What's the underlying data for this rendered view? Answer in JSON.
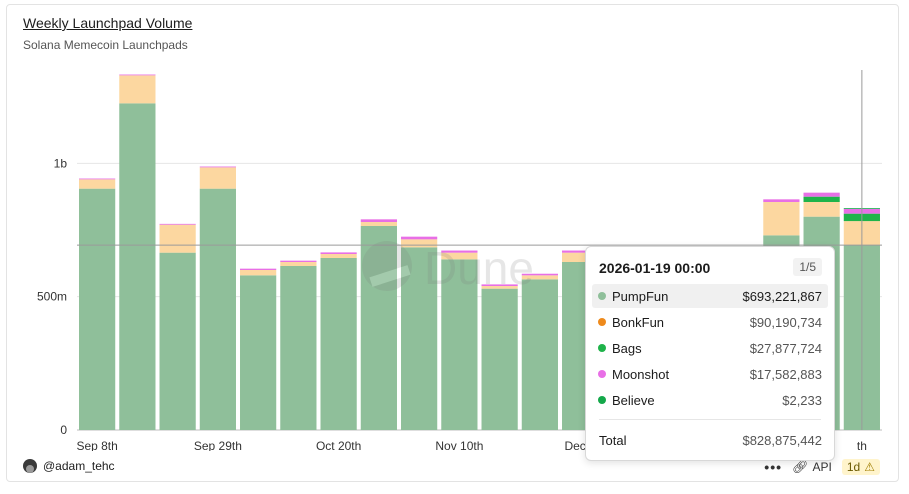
{
  "header": {
    "title": "Weekly Launchpad Volume",
    "subtitle": "Solana Memecoin Launchpads"
  },
  "watermark": "Dune",
  "footer": {
    "author": "@adam_tehc",
    "api_label": "API",
    "refresh_badge": "1d",
    "icons": [
      "avatar-icon",
      "more-icon",
      "link-icon",
      "warning-icon"
    ]
  },
  "tooltip": {
    "date": "2026-01-19 00:00",
    "page": "1/5",
    "rows": [
      {
        "name": "PumpFun",
        "value": "$693,221,867",
        "color": "#8fbf9a"
      },
      {
        "name": "BonkFun",
        "value": "$90,190,734",
        "color": "#ee8a1c"
      },
      {
        "name": "Bags",
        "value": "$27,877,724",
        "color": "#1fb34a"
      },
      {
        "name": "Moonshot",
        "value": "$17,582,883",
        "color": "#e86fe6"
      },
      {
        "name": "Believe",
        "value": "$2,233",
        "color": "#14a84a"
      }
    ],
    "total_label": "Total",
    "total_value": "$828,875,442"
  },
  "chart_data": {
    "type": "bar",
    "stacked": true,
    "title": "Weekly Launchpad Volume",
    "subtitle": "Solana Memecoin Launchpads",
    "xlabel": "",
    "ylabel": "",
    "ylim": [
      0,
      1350000000
    ],
    "yticks": [
      0,
      500000000,
      1000000000
    ],
    "ytick_labels": [
      "0",
      "500m",
      "1b"
    ],
    "x_tick_labels": [
      {
        "index": 0,
        "label": "Sep 8th"
      },
      {
        "index": 3,
        "label": "Sep 29th"
      },
      {
        "index": 6,
        "label": "Oct 20th"
      },
      {
        "index": 9,
        "label": "Nov 10th"
      },
      {
        "index": 12,
        "label": "Dec 1"
      },
      {
        "index": 19,
        "label": "th"
      }
    ],
    "categories": [
      "Sep 8th",
      "Sep 15th",
      "Sep 22nd",
      "Sep 29th",
      "Oct 6th",
      "Oct 13th",
      "Oct 20th",
      "Oct 27th",
      "Nov 3rd",
      "Nov 10th",
      "Nov 17th",
      "Nov 24th",
      "Dec 1st",
      "Dec 8th",
      "Dec 15th",
      "Dec 22nd",
      "Dec 29th",
      "Jan 5th",
      "Jan 12th",
      "Jan 19th"
    ],
    "series": [
      {
        "name": "PumpFun",
        "color": "#8fbf9a",
        "values": [
          905000000,
          1225000000,
          665000000,
          905000000,
          580000000,
          615000000,
          645000000,
          765000000,
          685000000,
          640000000,
          530000000,
          565000000,
          630000000,
          600000000,
          560000000,
          540000000,
          580000000,
          730000000,
          800000000,
          693221867
        ]
      },
      {
        "name": "BonkFun",
        "color": "#fcd7a0",
        "values": [
          35000000,
          105000000,
          105000000,
          80000000,
          20000000,
          15000000,
          15000000,
          15000000,
          30000000,
          25000000,
          10000000,
          15000000,
          35000000,
          25000000,
          25000000,
          25000000,
          30000000,
          125000000,
          55000000,
          90190734
        ]
      },
      {
        "name": "Bags",
        "color": "#1fb34a",
        "values": [
          0,
          0,
          0,
          0,
          0,
          0,
          0,
          0,
          0,
          0,
          0,
          0,
          0,
          0,
          0,
          0,
          0,
          0,
          20000000,
          27877724
        ]
      },
      {
        "name": "Moonshot",
        "color": "#e86fe6",
        "values": [
          1000000,
          1000000,
          1000000,
          3000000,
          5000000,
          5000000,
          6000000,
          10000000,
          10000000,
          8000000,
          6000000,
          6000000,
          8000000,
          8000000,
          8000000,
          8000000,
          8000000,
          10000000,
          15000000,
          17582883
        ]
      },
      {
        "name": "Believe",
        "color": "#14a84a",
        "values": [
          0,
          0,
          0,
          0,
          0,
          0,
          0,
          0,
          0,
          0,
          0,
          0,
          0,
          0,
          0,
          0,
          0,
          0,
          0,
          2233
        ]
      }
    ],
    "crosshair_value": 693221867,
    "crosshair_index": 19,
    "grid": true
  }
}
